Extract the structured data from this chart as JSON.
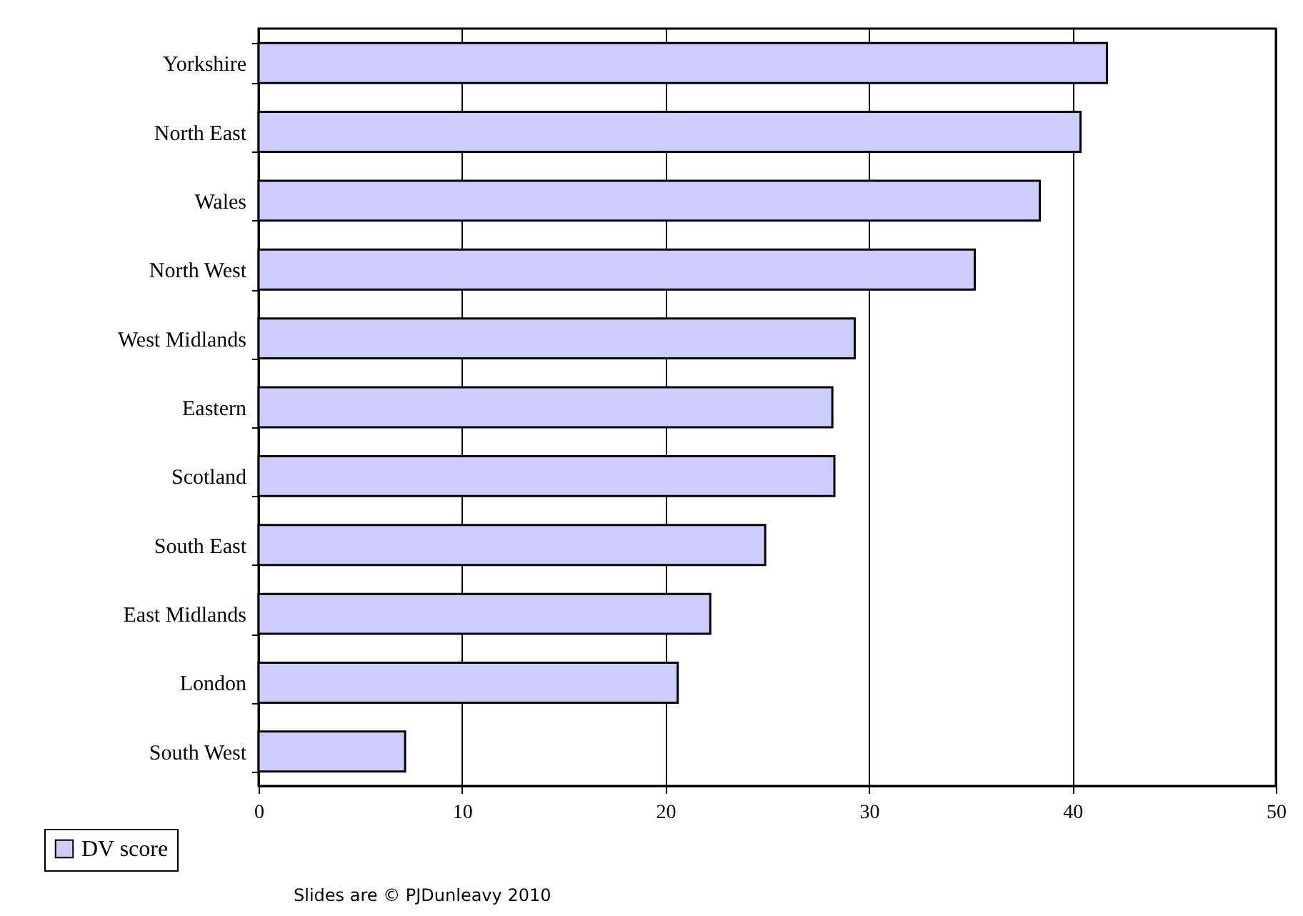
{
  "chart_data": {
    "type": "bar",
    "orientation": "horizontal",
    "categories": [
      "Yorkshire",
      "North East",
      "Wales",
      "North West",
      "West Midlands",
      "Eastern",
      "Scotland",
      "South East",
      "East Midlands",
      "London",
      "South West"
    ],
    "series": [
      {
        "name": "DV score",
        "color": "#ccccff",
        "values": [
          41.7,
          40.4,
          38.4,
          35.2,
          29.3,
          28.2,
          28.3,
          24.9,
          22.2,
          20.6,
          7.2
        ]
      }
    ],
    "xlim": [
      0,
      50
    ],
    "xticks": [
      0,
      10,
      20,
      30,
      40,
      50
    ],
    "grid": "x",
    "legend": "bottom left",
    "annotations": [
      "Slides are © PJDunleavy 2010"
    ]
  }
}
